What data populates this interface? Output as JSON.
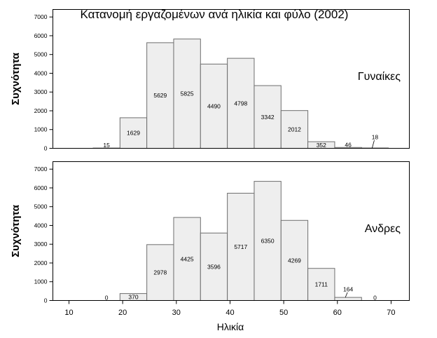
{
  "chart_data": {
    "type": "bar",
    "title": "Κατανομή εργαζομένων ανά ηλικία και φύλο (2002)",
    "xlabel": "Ηλικία",
    "ylabel": "Συχνότητα",
    "xlim": [
      7,
      73.4
    ],
    "ylim": [
      0,
      7400
    ],
    "xticks": [
      10,
      20,
      30,
      40,
      50,
      60,
      70
    ],
    "yticks": [
      0,
      1000,
      2000,
      3000,
      4000,
      5000,
      6000,
      7000
    ],
    "bin_edges": [
      14.5,
      19.5,
      24.5,
      29.5,
      34.5,
      39.5,
      44.5,
      49.5,
      54.5,
      59.5,
      64.5,
      69.5
    ],
    "grid": false,
    "series": [
      {
        "name": "Γυναίκες",
        "values": [
          15,
          1629,
          5629,
          5825,
          4490,
          4798,
          3342,
          2012,
          352,
          46,
          18
        ]
      },
      {
        "name": "Ανδρες",
        "values": [
          0,
          370,
          2978,
          4425,
          3596,
          5717,
          6350,
          4269,
          1711,
          164,
          0
        ]
      }
    ],
    "colors": {
      "bar_fill": "#eeeeee",
      "bar_edge": "#6e6e6e",
      "axis": "#000000"
    }
  }
}
